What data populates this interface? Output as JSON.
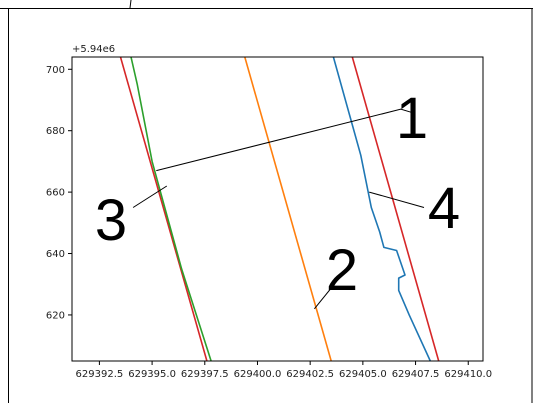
{
  "chart_data": {
    "type": "line",
    "offset_label": "+5.94e6",
    "x_ticks": [
      "629392.5",
      "629395.0",
      "629397.5",
      "629400.0",
      "629402.5",
      "629405.0",
      "629407.5",
      "629410.0"
    ],
    "y_ticks": [
      "620",
      "640",
      "660",
      "680",
      "700"
    ],
    "xlim": [
      629391.2,
      629410.7
    ],
    "ylim": [
      605,
      704
    ],
    "grid": false,
    "legend": "none",
    "colors": {
      "red": "#d62728",
      "green": "#2ca02c",
      "orange": "#ff7f0e",
      "blue": "#1f77b4"
    },
    "series": [
      {
        "color_key": "red",
        "x": [
          629393.5,
          629397.6
        ],
        "y": [
          704,
          605
        ]
      },
      {
        "color_key": "green",
        "x": [
          629394.0,
          629394.3,
          629395.0,
          629396.4,
          629397.8
        ],
        "y": [
          704,
          695,
          670,
          635,
          605
        ]
      },
      {
        "color_key": "orange",
        "x": [
          629399.4,
          629403.5
        ],
        "y": [
          704,
          605
        ]
      },
      {
        "color_key": "red",
        "x": [
          629404.5,
          629408.6
        ],
        "y": [
          704,
          605
        ]
      },
      {
        "color_key": "blue",
        "x": [
          629403.6,
          629404.9,
          629405.4,
          629405.8,
          629406.0,
          629406.6,
          629407.0,
          629406.7,
          629406.7,
          629407.2,
          629408.2
        ],
        "y": [
          704,
          672,
          655,
          647,
          642,
          641,
          633,
          632,
          628,
          620,
          605
        ]
      }
    ],
    "annotations": [
      {
        "label": "1",
        "points": [
          [
            629395.2,
            667
          ],
          [
            629406.8,
            687
          ],
          [
            629407.3,
            686
          ]
        ]
      },
      {
        "label": "2",
        "points": [
          [
            629404.0,
            633
          ],
          [
            629402.7,
            622
          ]
        ]
      },
      {
        "label": "3",
        "points": [
          [
            629395.7,
            662
          ],
          [
            629394.1,
            655
          ]
        ]
      },
      {
        "label": "4",
        "points": [
          [
            629405.3,
            660
          ],
          [
            629407.9,
            655
          ]
        ]
      }
    ]
  }
}
